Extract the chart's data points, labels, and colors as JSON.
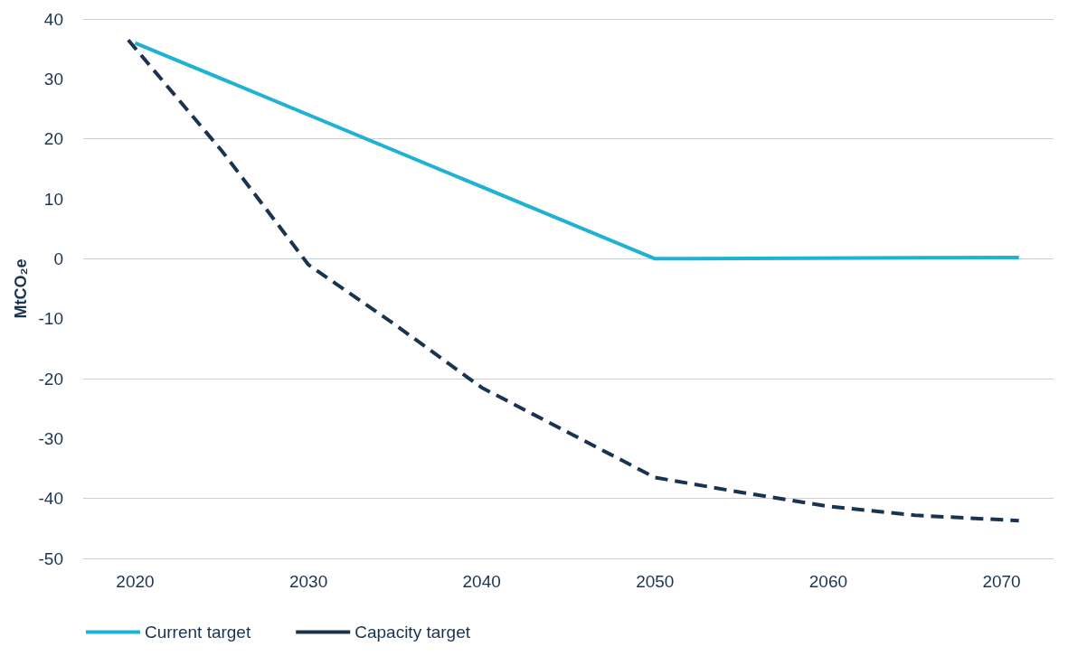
{
  "chart_data": {
    "type": "line",
    "ylabel": "MtCO₂e",
    "xlim": [
      2017,
      2073
    ],
    "xticks": [
      2020,
      2030,
      2040,
      2050,
      2060,
      2070
    ],
    "ylim": [
      -50,
      40
    ],
    "yticks": [
      -50,
      -40,
      -30,
      -20,
      -10,
      0,
      10,
      20,
      30,
      40
    ],
    "grid": "y",
    "legend": "bottom left",
    "marker": "none",
    "series": [
      {
        "name": "Current target",
        "color": "#1fb2d4",
        "line_style": "solid",
        "x": [
          2020,
          2050,
          2071
        ],
        "values": [
          36,
          0,
          0.2
        ]
      },
      {
        "name": "Capacity target",
        "color": "#1a3351",
        "line_style": "dashed",
        "x": [
          2019.6,
          2025,
          2030,
          2035,
          2040,
          2045,
          2050,
          2055,
          2060,
          2065,
          2071
        ],
        "values": [
          36.5,
          18,
          -1,
          -11,
          -21.5,
          -29,
          -36.5,
          -39,
          -41.3,
          -42.8,
          -43.7
        ]
      }
    ]
  }
}
